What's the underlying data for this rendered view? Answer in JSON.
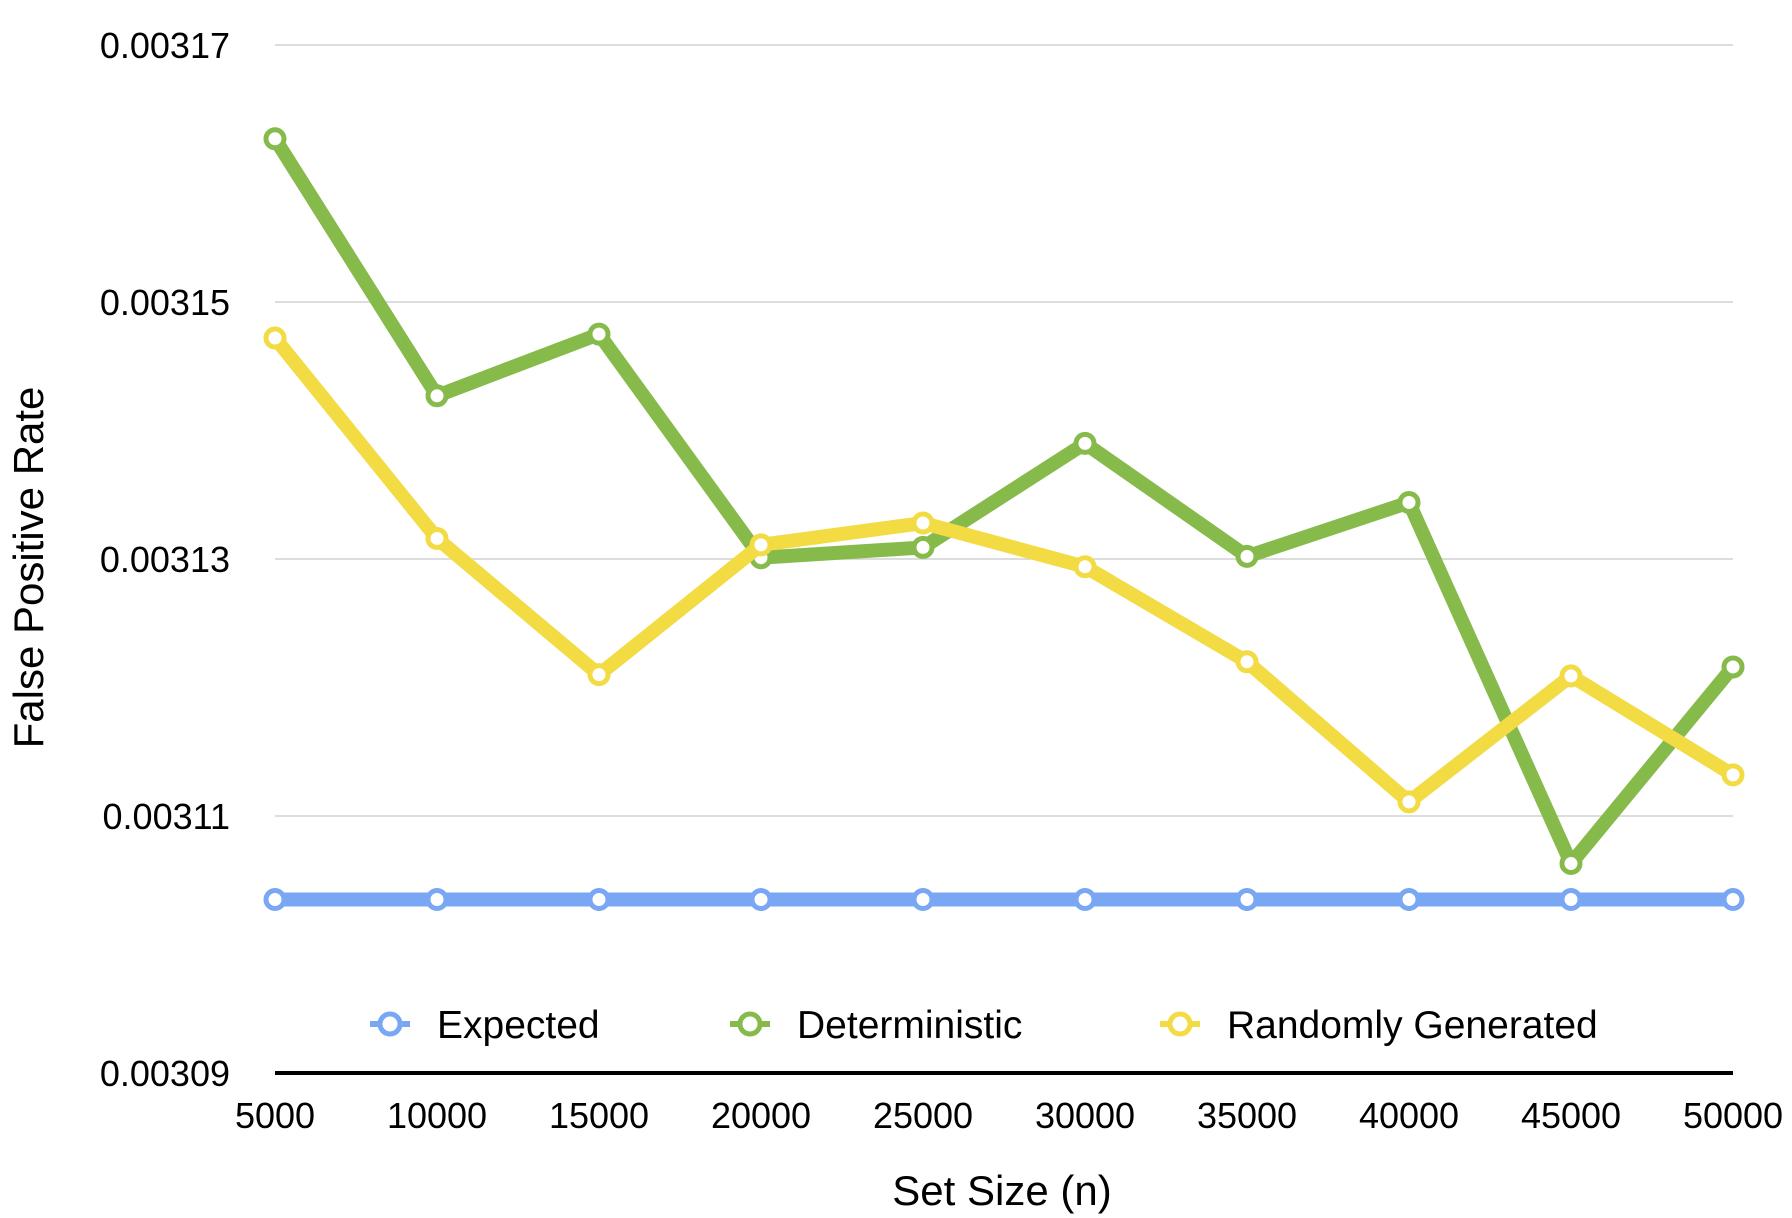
{
  "chart_data": {
    "type": "line",
    "title": "",
    "xlabel": "Set Size (n)",
    "ylabel": "False Positive Rate",
    "ylim": [
      0.00309,
      0.00317
    ],
    "yticks": [
      "0.00317",
      "0.00315",
      "0.00313",
      "0.00311",
      "0.00309"
    ],
    "ytick_values": [
      0.00317,
      0.00315,
      0.00313,
      0.00311,
      0.00309
    ],
    "x": [
      5000,
      10000,
      15000,
      20000,
      25000,
      30000,
      35000,
      40000,
      45000,
      50000
    ],
    "xtick_labels": [
      "5000",
      "10000",
      "15000",
      "20000",
      "25000",
      "30000",
      "35000",
      "40000",
      "45000",
      "50000"
    ],
    "grid": true,
    "legend_position": "bottom, inside plot",
    "series": [
      {
        "name": "Expected",
        "color": "#7aa7f3",
        "values": [
          0.0031035,
          0.0031035,
          0.0031035,
          0.0031035,
          0.0031035,
          0.0031035,
          0.0031035,
          0.0031035,
          0.0031035,
          0.0031035
        ]
      },
      {
        "name": "Deterministic",
        "color": "#86bb4b",
        "values": [
          0.0031627,
          0.0031427,
          0.0031475,
          0.0031301,
          0.0031309,
          0.003139,
          0.0031302,
          0.0031344,
          0.0031063,
          0.0031216
        ]
      },
      {
        "name": "Randomly Generated",
        "color": "#f2db43",
        "values": [
          0.0031472,
          0.0031316,
          0.003121,
          0.0031311,
          0.0031328,
          0.0031294,
          0.003122,
          0.0031111,
          0.0031209,
          0.0031132
        ]
      }
    ]
  }
}
